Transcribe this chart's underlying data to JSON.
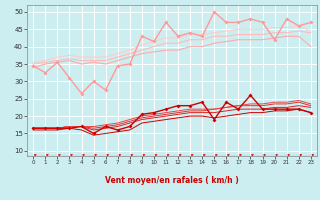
{
  "x": [
    0,
    1,
    2,
    3,
    4,
    5,
    6,
    7,
    8,
    9,
    10,
    11,
    12,
    13,
    14,
    15,
    16,
    17,
    18,
    19,
    20,
    21,
    22,
    23
  ],
  "background_color": "#cceef0",
  "grid_color": "#ffffff",
  "xlabel": "Vent moyen/en rafales ( km/h )",
  "xlabel_color": "#cc0000",
  "yticks": [
    10,
    15,
    20,
    25,
    30,
    35,
    40,
    45,
    50
  ],
  "ylim": [
    8.5,
    52
  ],
  "xlim": [
    -0.5,
    23.5
  ],
  "lines_light": [
    {
      "y": [
        34.5,
        32.5,
        35.5,
        31,
        26.5,
        30,
        27.5,
        34.5,
        35,
        43,
        41.5,
        47,
        43,
        44,
        43,
        50,
        47,
        47,
        48,
        47,
        42,
        48,
        46,
        47
      ],
      "color": "#ff9999",
      "marker": "D",
      "markersize": 2.0,
      "linewidth": 1.0
    },
    {
      "y": [
        34,
        35,
        35.5,
        36,
        35,
        35.5,
        35,
        36,
        37,
        38,
        38.5,
        39,
        39,
        40,
        40,
        41,
        41.5,
        42,
        42,
        42,
        42.5,
        43,
        43,
        40
      ],
      "color": "#ffaaaa",
      "marker": null,
      "linewidth": 0.8
    },
    {
      "y": [
        35,
        35.5,
        36,
        36.5,
        36,
        36,
        36,
        37,
        38,
        39,
        40,
        41,
        41,
        42,
        42,
        43,
        43,
        43.5,
        43.5,
        43.5,
        44,
        44,
        44.5,
        44
      ],
      "color": "#ffbbbb",
      "marker": null,
      "linewidth": 0.8
    },
    {
      "y": [
        35.5,
        36,
        37,
        37.5,
        37,
        37,
        37,
        38,
        39,
        40.5,
        41.5,
        42.5,
        42.5,
        43.5,
        43.5,
        44,
        44.5,
        45,
        45,
        45,
        45.5,
        45.5,
        46,
        44.5
      ],
      "color": "#ffcccc",
      "marker": null,
      "linewidth": 0.8
    }
  ],
  "lines_dark": [
    {
      "y": [
        16.5,
        16.5,
        16.5,
        16.5,
        17,
        15,
        17,
        16,
        17,
        20.5,
        21,
        22,
        23,
        23,
        24,
        19,
        24,
        22,
        26,
        22,
        22,
        22,
        22,
        21
      ],
      "color": "#cc0000",
      "marker": "D",
      "markersize": 2.0,
      "linewidth": 1.0
    },
    {
      "y": [
        16,
        16,
        16,
        16.5,
        16,
        14.5,
        15,
        15.5,
        16,
        18,
        18.5,
        19,
        19.5,
        20,
        20,
        19.5,
        20,
        20.5,
        21,
        21,
        21.5,
        21.5,
        22,
        21
      ],
      "color": "#cc0000",
      "marker": null,
      "linewidth": 0.7
    },
    {
      "y": [
        16.5,
        16.5,
        16.5,
        17,
        17,
        16,
        16.5,
        17,
        18,
        19,
        19.5,
        20,
        20.5,
        21,
        21,
        21,
        21.5,
        22,
        22,
        22,
        22.5,
        22.5,
        23,
        22.5
      ],
      "color": "#dd2222",
      "marker": null,
      "linewidth": 0.7
    },
    {
      "y": [
        16.5,
        16.5,
        16.5,
        17,
        17,
        16.5,
        17,
        17.5,
        18.5,
        19.5,
        20,
        20.5,
        21,
        21.5,
        21.5,
        22,
        22.5,
        23,
        23,
        23,
        23.5,
        23.5,
        24,
        23
      ],
      "color": "#dd3333",
      "marker": null,
      "linewidth": 0.7
    },
    {
      "y": [
        16.5,
        16.5,
        16.5,
        17,
        17,
        17,
        17.5,
        18,
        19,
        20,
        20.5,
        21,
        21.5,
        22,
        22,
        22,
        22.5,
        23,
        23.5,
        23.5,
        24,
        24,
        24.5,
        23.5
      ],
      "color": "#ee4444",
      "marker": null,
      "linewidth": 0.7
    }
  ]
}
